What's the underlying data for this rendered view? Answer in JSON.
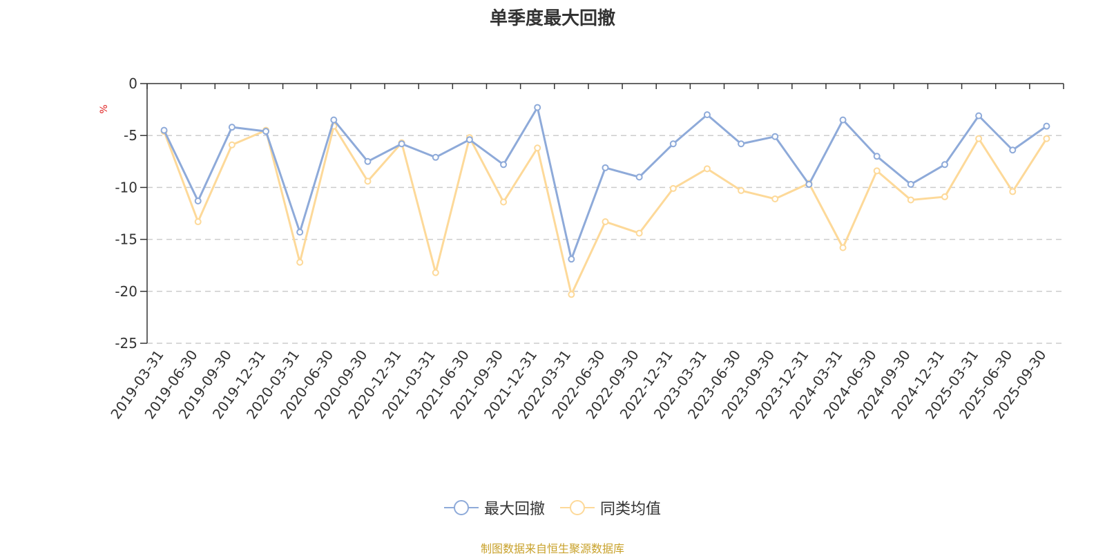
{
  "chart_data": {
    "type": "line",
    "title": "单季度最大回撤",
    "ylabel": "%",
    "ylim": [
      -25,
      0
    ],
    "yticks": [
      0,
      -5,
      -10,
      -15,
      -20,
      -25
    ],
    "grid": true,
    "legend_position": "bottom",
    "categories": [
      "2019-03-31",
      "2019-06-30",
      "2019-09-30",
      "2019-12-31",
      "2020-03-31",
      "2020-06-30",
      "2020-09-30",
      "2020-12-31",
      "2021-03-31",
      "2021-06-30",
      "2021-09-30",
      "2021-12-31",
      "2022-03-31",
      "2022-06-30",
      "2022-09-30",
      "2022-12-31",
      "2023-03-31",
      "2023-06-30",
      "2023-09-30",
      "2023-12-31",
      "2024-03-31",
      "2024-06-30",
      "2024-09-30",
      "2024-12-31",
      "2025-03-31",
      "2025-06-30",
      "2025-09-30"
    ],
    "series": [
      {
        "name": "最大回撤",
        "color": "#8eaad9",
        "values": [
          -4.5,
          -11.3,
          -4.2,
          -4.6,
          -14.3,
          -3.5,
          -7.5,
          -5.8,
          -7.1,
          -5.4,
          -7.8,
          -2.3,
          -16.9,
          -8.1,
          -9.0,
          -5.8,
          -3.0,
          -5.8,
          -5.1,
          -9.7,
          -3.5,
          -7.0,
          -9.7,
          -7.8,
          -3.1,
          -6.4,
          -4.1
        ]
      },
      {
        "name": "同类均值",
        "color": "#fdd999",
        "values": [
          -4.6,
          -13.3,
          -5.9,
          -4.5,
          -17.2,
          -4.1,
          -9.4,
          -5.7,
          -18.2,
          -5.2,
          -11.4,
          -6.2,
          -20.3,
          -13.3,
          -14.4,
          -10.1,
          -8.2,
          -10.3,
          -11.1,
          -9.6,
          -15.8,
          -8.4,
          -11.2,
          -10.9,
          -5.3,
          -10.4,
          -5.3
        ]
      }
    ]
  },
  "source_note": "制图数据来自恒生聚源数据库"
}
